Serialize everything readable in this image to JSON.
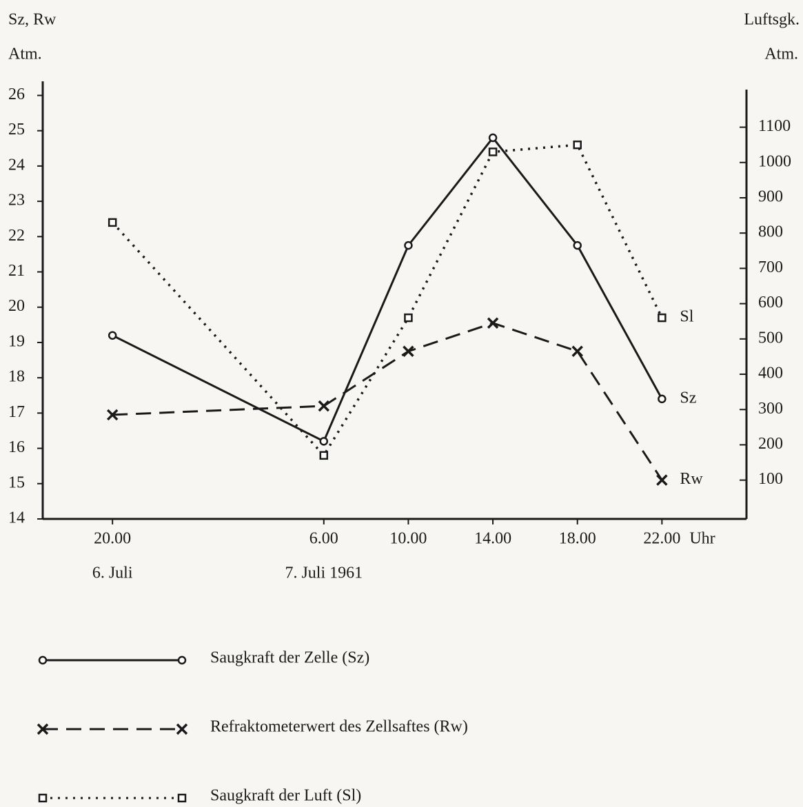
{
  "chart_data": {
    "type": "line",
    "y_axis_label": "Sz, Rw",
    "y_axis_unit": "Atm.",
    "y2_axis_label": "Luftsgk.",
    "y2_axis_unit": "Atm.",
    "x": [
      20,
      30,
      34,
      38,
      42,
      46
    ],
    "xlim": [
      16.7,
      50
    ],
    "xticks": [
      {
        "value": 20,
        "label": "20.00"
      },
      {
        "value": 30,
        "label": "6.00"
      },
      {
        "value": 34,
        "label": "10.00"
      },
      {
        "value": 38,
        "label": "14.00"
      },
      {
        "value": 42,
        "label": "18.00"
      },
      {
        "value": 46,
        "label": "22.00"
      }
    ],
    "xlabel": "Uhr",
    "date_labels": [
      {
        "value": 20,
        "label": "6. Juli"
      },
      {
        "value": 30,
        "label": "7. Juli 1961"
      }
    ],
    "ylim": [
      14,
      26.4
    ],
    "yticks": [
      14,
      15,
      16,
      17,
      18,
      19,
      20,
      21,
      22,
      23,
      24,
      25,
      26
    ],
    "y2lim": [
      -10,
      1230
    ],
    "y2ticks": [
      100,
      200,
      300,
      400,
      500,
      600,
      700,
      800,
      900,
      1000,
      1100
    ],
    "series": [
      {
        "name": "Saugkraft der Zelle (Sz)",
        "end_label": "Sz",
        "color": "#1a1a1a",
        "dash": "solid",
        "marker": "circle",
        "values": [
          19.2,
          16.2,
          21.75,
          24.8,
          21.75,
          17.4
        ]
      },
      {
        "name": "Refraktometerwert des Zellsaftes (Rw)",
        "end_label": "Rw",
        "color": "#1a1a1a",
        "dash": "dashed",
        "marker": "x",
        "values": [
          16.95,
          17.2,
          18.75,
          19.55,
          18.75,
          15.1
        ]
      },
      {
        "name": "Saugkraft der Luft (Sl)",
        "end_label": "Sl",
        "color": "#1a1a1a",
        "dash": "dotted",
        "marker": "square",
        "axis": "y2",
        "values": [
          830,
          170,
          560,
          1030,
          1050,
          560
        ]
      }
    ]
  }
}
